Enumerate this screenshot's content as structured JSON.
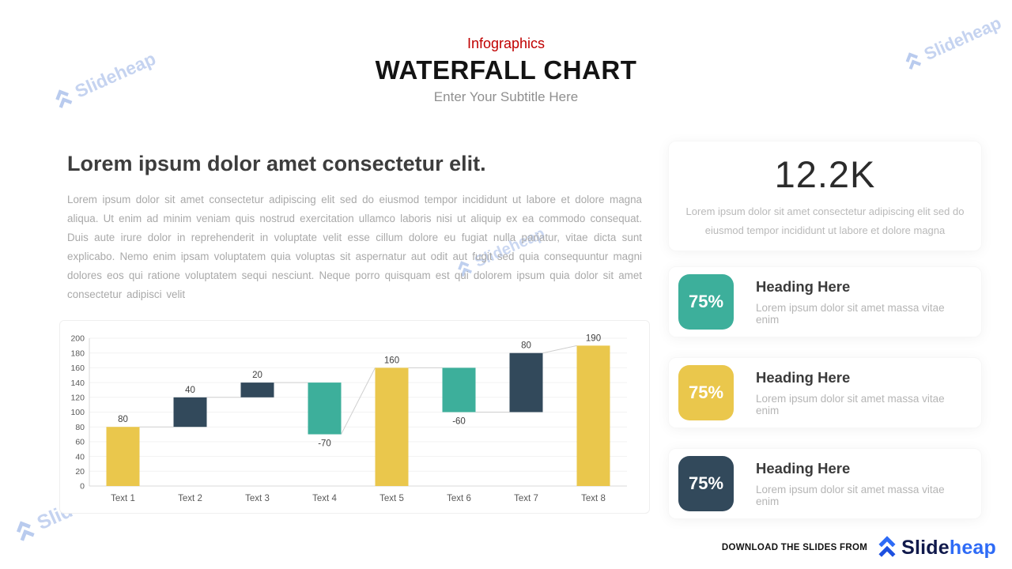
{
  "watermark": {
    "text": "Slideheap"
  },
  "header": {
    "kicker": "Infographics",
    "title": "WATERFALL CHART",
    "subtitle": "Enter Your Subtitle Here"
  },
  "left": {
    "heading": "Lorem ipsum dolor amet consectetur elit.",
    "body": "Lorem ipsum dolor sit amet consectetur adipiscing elit sed do eiusmod tempor incididunt ut labore et dolore magna aliqua. Ut enim ad minim veniam quis nostrud exercitation ullamco laboris nisi ut aliquip ex ea commodo consequat. Duis aute irure dolor in reprehenderit in voluptate velit esse cillum dolore eu fugiat nulla pariatur, vitae dicta sunt explicabo. Nemo enim ipsam voluptatem quia voluptas sit aspernatur aut odit aut fugit sed quia consequuntur magni dolores eos qui ratione voluptatem sequi nesciunt. Neque porro quisquam est qui dolorem ipsum quia dolor sit amet consectetur adipisci velit"
  },
  "chart_data": {
    "type": "bar",
    "subtype": "waterfall",
    "title": "",
    "xlabel": "",
    "ylabel": "",
    "categories": [
      "Text 1",
      "Text 2",
      "Text 3",
      "Text 4",
      "Text 5",
      "Text 6",
      "Text 7",
      "Text 8"
    ],
    "values": [
      80,
      40,
      20,
      -70,
      160,
      -60,
      80,
      190
    ],
    "bar_kinds": [
      "total",
      "increase",
      "increase",
      "decrease",
      "total",
      "decrease",
      "increase",
      "total"
    ],
    "data_labels": [
      "80",
      "40",
      "20",
      "-70",
      "160",
      "-60",
      "80",
      "190"
    ],
    "cumulative_ends": [
      80,
      120,
      140,
      70,
      160,
      100,
      180,
      190
    ],
    "ylim": [
      0,
      200
    ],
    "ytick_step": 20,
    "grid": true,
    "legend": "none",
    "colors": {
      "total": "#EAC74C",
      "increase": "#32495B",
      "decrease": "#3DAF9B"
    },
    "axis_color": "#d9d9d9",
    "grid_color": "#f2f2f2",
    "connector_color": "#cfcfcf",
    "tick_color": "#595959",
    "label_color": "#404040"
  },
  "stat": {
    "value": "12.2K",
    "description": "Lorem ipsum dolor sit amet consectetur adipiscing elit sed do eiusmod tempor incididunt ut labore et dolore magna"
  },
  "cards": [
    {
      "percent": "75%",
      "heading": "Heading Here",
      "text": "Lorem ipsum dolor sit amet massa vitae enim",
      "color": "#3DAF9B"
    },
    {
      "percent": "75%",
      "heading": "Heading Here",
      "text": "Lorem ipsum dolor sit amet massa vitae enim",
      "color": "#EAC74C"
    },
    {
      "percent": "75%",
      "heading": "Heading Here",
      "text": "Lorem ipsum dolor sit amet massa vitae enim",
      "color": "#32495B"
    }
  ],
  "footer": {
    "label": "DOWNLOAD THE SLIDES FROM",
    "brand_slide": "Slide",
    "brand_heap": "heap"
  },
  "brand_colors": {
    "blue": "#2e6bf6",
    "dark": "#10194b",
    "watermark": "#c5d3f0",
    "red": "#c00000"
  }
}
